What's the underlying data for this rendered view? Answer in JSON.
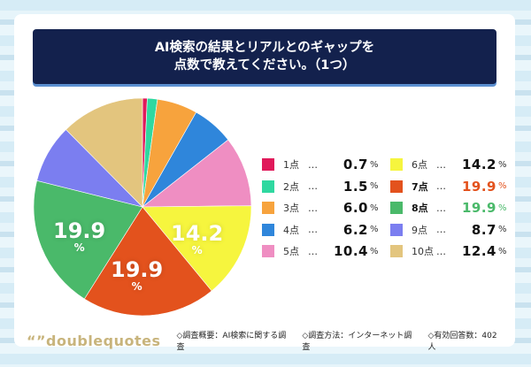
{
  "title": {
    "line1": "AI検索の結果とリアルとのギャップを",
    "line2": "点数で教えてください。（1つ）"
  },
  "chart_data": {
    "type": "pie",
    "title": "AI検索の結果とリアルとのギャップを点数で教えてください。（1つ）",
    "categories": [
      "1点",
      "2点",
      "3点",
      "4点",
      "5点",
      "6点",
      "7点",
      "8点",
      "9点",
      "10点"
    ],
    "values": [
      0.7,
      1.5,
      6.0,
      6.2,
      10.4,
      14.2,
      19.9,
      19.9,
      8.7,
      12.4
    ],
    "colors": [
      "#e0195a",
      "#2fd8a0",
      "#f7a33d",
      "#2f86db",
      "#ef8ec2",
      "#f6f53e",
      "#e3521d",
      "#4ab96a",
      "#7b7ef0",
      "#e3c57e"
    ],
    "unit": "%",
    "slice_labels": [
      {
        "category": "6点",
        "text": "14.2",
        "unit": "%"
      },
      {
        "category": "7点",
        "text": "19.9",
        "unit": "%"
      },
      {
        "category": "8点",
        "text": "19.9",
        "unit": "%"
      }
    ],
    "legend_position": "right"
  },
  "legend": [
    {
      "label": "1点",
      "dots": "…",
      "value": "0.7",
      "pct": "%",
      "color": "#e0195a",
      "val_color": "#111"
    },
    {
      "label": "2点",
      "dots": "…",
      "value": "1.5",
      "pct": "%",
      "color": "#2fd8a0",
      "val_color": "#111"
    },
    {
      "label": "3点",
      "dots": "…",
      "value": "6.0",
      "pct": "%",
      "color": "#f7a33d",
      "val_color": "#111"
    },
    {
      "label": "4点",
      "dots": "…",
      "value": "6.2",
      "pct": "%",
      "color": "#2f86db",
      "val_color": "#111"
    },
    {
      "label": "5点",
      "dots": "…",
      "value": "10.4",
      "pct": "%",
      "color": "#ef8ec2",
      "val_color": "#111"
    },
    {
      "label": "6点",
      "dots": "…",
      "value": "14.2",
      "pct": "%",
      "color": "#f6f53e",
      "val_color": "#111"
    },
    {
      "label": "7点",
      "dots": "…",
      "value": "19.9",
      "pct": "%",
      "color": "#e3521d",
      "val_color": "#e3521d"
    },
    {
      "label": "8点",
      "dots": "…",
      "value": "19.9",
      "pct": "%",
      "color": "#4ab96a",
      "val_color": "#4ab96a"
    },
    {
      "label": "9点",
      "dots": "…",
      "value": "8.7",
      "pct": "%",
      "color": "#7b7ef0",
      "val_color": "#111"
    },
    {
      "label": "10点",
      "dots": "…",
      "value": "12.4",
      "pct": "%",
      "color": "#e3c57e",
      "val_color": "#111"
    }
  ],
  "footer": {
    "brand": "“”doublequotes",
    "items": [
      "◇調査概要：AI検索に関する調査",
      "◇調査方法：インターネット調査",
      "◇有効回答数：402人"
    ]
  }
}
